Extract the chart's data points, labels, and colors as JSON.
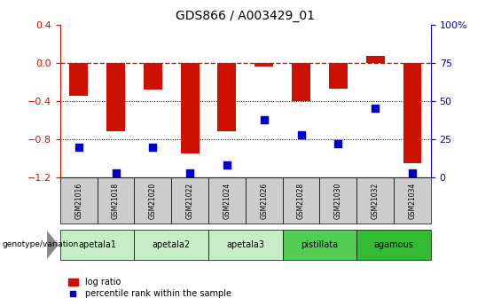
{
  "title": "GDS866 / A003429_01",
  "samples": [
    "GSM21016",
    "GSM21018",
    "GSM21020",
    "GSM21022",
    "GSM21024",
    "GSM21026",
    "GSM21028",
    "GSM21030",
    "GSM21032",
    "GSM21034"
  ],
  "log_ratio": [
    -0.35,
    -0.72,
    -0.28,
    -0.95,
    -0.72,
    -0.04,
    -0.4,
    -0.27,
    0.07,
    -1.05
  ],
  "percentile_rank": [
    20,
    3,
    20,
    3,
    8,
    38,
    28,
    22,
    45,
    3
  ],
  "groups": [
    {
      "name": "apetala1",
      "indices": [
        0,
        1
      ],
      "color": "#c8ecc8"
    },
    {
      "name": "apetala2",
      "indices": [
        2,
        3
      ],
      "color": "#c8ecc8"
    },
    {
      "name": "apetala3",
      "indices": [
        4,
        5
      ],
      "color": "#c8ecc8"
    },
    {
      "name": "pistillata",
      "indices": [
        6,
        7
      ],
      "color": "#55cc55"
    },
    {
      "name": "agamous",
      "indices": [
        8,
        9
      ],
      "color": "#33bb33"
    }
  ],
  "ylim_left": [
    -1.2,
    0.4
  ],
  "ylim_right": [
    0,
    100
  ],
  "yticks_left": [
    -1.2,
    -0.8,
    -0.4,
    0.0,
    0.4
  ],
  "yticks_right": [
    0,
    25,
    50,
    75,
    100
  ],
  "bar_color": "#cc1100",
  "dot_color": "#0000cc",
  "hline_color": "#cc1100",
  "dot_size": 35,
  "bar_width": 0.5,
  "sample_box_color": "#cccccc",
  "figure_width": 5.65,
  "figure_height": 3.45,
  "figure_dpi": 100
}
